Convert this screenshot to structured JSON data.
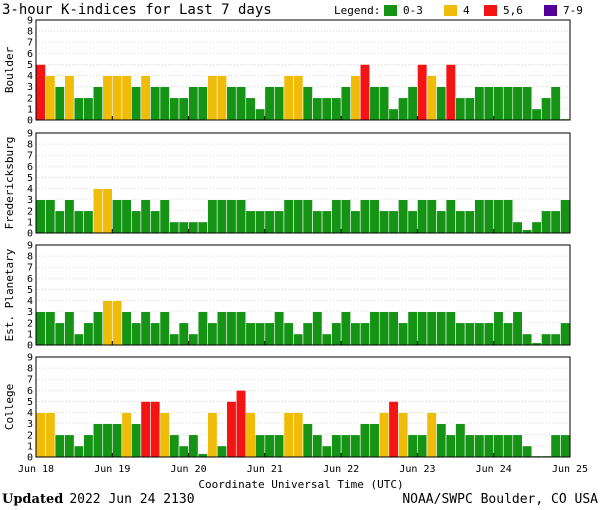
{
  "title": "3-hour K-indices for Last 7 days",
  "legend": {
    "label": "Legend:",
    "items": [
      {
        "label": "0-3",
        "color": "#159315"
      },
      {
        "label": "4",
        "color": "#f0bc0a"
      },
      {
        "label": "5,6",
        "color": "#f51414"
      },
      {
        "label": "7-9",
        "color": "#520099"
      }
    ]
  },
  "footer": {
    "updated_label": "Updated",
    "updated_value": "2022 Jun 24 2130",
    "source": "NOAA/SWPC Boulder, CO USA"
  },
  "chart_data": {
    "type": "bar",
    "title": "3-hour K-indices for Last 7 days",
    "xlabel": "Coordinate Universal Time (UTC)",
    "x_ticks": [
      "Jun 18",
      "Jun 19",
      "Jun 20",
      "Jun 21",
      "Jun 22",
      "Jun 23",
      "Jun 24",
      "Jun 25"
    ],
    "ylim": [
      0,
      9
    ],
    "y_ticks": [
      "0",
      "1",
      "2",
      "3",
      "4",
      "5",
      "6",
      "7",
      "8",
      "9"
    ],
    "color_scale": [
      {
        "range": "0-3",
        "color": "#159315"
      },
      {
        "range": "4",
        "color": "#f0bc0a"
      },
      {
        "range": "5,6",
        "color": "#f51414"
      },
      {
        "range": "7-9",
        "color": "#520099"
      }
    ],
    "intervals_per_day": 8,
    "series": [
      {
        "name": "Boulder",
        "values": [
          5,
          4,
          3,
          4,
          2,
          2,
          3,
          4,
          4,
          4,
          3,
          4,
          3,
          3,
          2,
          2,
          3,
          3,
          4,
          4,
          3,
          3,
          2,
          1,
          3,
          3,
          4,
          4,
          3,
          2,
          2,
          2,
          3,
          4,
          5,
          3,
          3,
          1,
          2,
          3,
          5,
          4,
          3,
          5,
          2,
          2,
          3,
          3,
          3,
          3,
          3,
          3,
          1,
          2,
          3,
          0.1
        ]
      },
      {
        "name": "Fredericksburg",
        "values": [
          3,
          3,
          2,
          3,
          2,
          2,
          4,
          4,
          3,
          3,
          2,
          3,
          2,
          3,
          1,
          1,
          1,
          1,
          3,
          3,
          3,
          3,
          2,
          2,
          2,
          2,
          3,
          3,
          3,
          2,
          2,
          3,
          3,
          2,
          3,
          3,
          2,
          2,
          3,
          2,
          3,
          3,
          2,
          3,
          2,
          2,
          3,
          3,
          3,
          3,
          1,
          0.3,
          1,
          2,
          2,
          3
        ]
      },
      {
        "name": "Est. Planetary",
        "values": [
          3,
          3,
          2,
          3,
          1,
          2,
          3,
          4,
          4,
          3,
          2,
          3,
          2,
          3,
          1,
          2,
          1,
          3,
          2,
          3,
          3,
          3,
          2,
          2,
          2,
          3,
          2,
          1,
          2,
          3,
          1,
          2,
          3,
          2,
          2,
          3,
          3,
          3,
          2,
          3,
          3,
          3,
          3,
          3,
          2,
          2,
          2,
          2,
          3,
          2,
          3,
          1,
          0.2,
          1,
          1,
          2
        ]
      },
      {
        "name": "College",
        "values": [
          4,
          4,
          2,
          2,
          1,
          2,
          3,
          3,
          3,
          4,
          3,
          5,
          5,
          4,
          2,
          1,
          2,
          0.3,
          4,
          1,
          5,
          6,
          4,
          2,
          2,
          2,
          4,
          4,
          3,
          2,
          1,
          2,
          2,
          2,
          3,
          3,
          4,
          5,
          4,
          2,
          2,
          4,
          3,
          2,
          3,
          2,
          2,
          2,
          2,
          2,
          2,
          1,
          0.1,
          0.1,
          2,
          2
        ]
      }
    ]
  }
}
